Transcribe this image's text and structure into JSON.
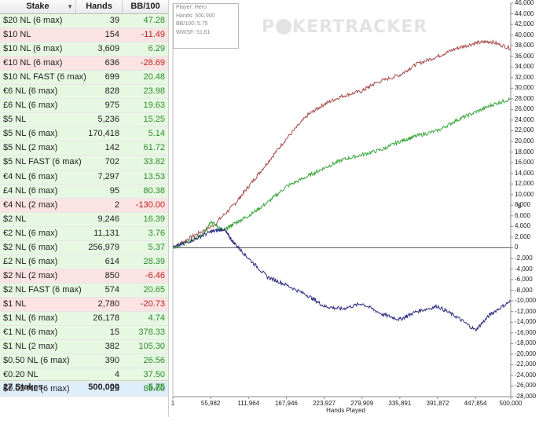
{
  "table": {
    "columns": {
      "stake": "Stake",
      "hands": "Hands",
      "bb100": "BB/100"
    },
    "rows": [
      {
        "stake": "$20 NL (6 max)",
        "hands": "39",
        "bb100": "47.28",
        "bg": "g"
      },
      {
        "stake": "$10 NL",
        "hands": "154",
        "bb100": "-11.49",
        "bg": "r"
      },
      {
        "stake": "$10 NL (6 max)",
        "hands": "3,609",
        "bb100": "6.29",
        "bg": "g"
      },
      {
        "stake": "€10 NL (6 max)",
        "hands": "636",
        "bb100": "-28.69",
        "bg": "r"
      },
      {
        "stake": "$10 NL FAST (6 max)",
        "hands": "699",
        "bb100": "20.48",
        "bg": "g"
      },
      {
        "stake": "€6 NL (6 max)",
        "hands": "828",
        "bb100": "23.98",
        "bg": "g"
      },
      {
        "stake": "£6 NL (6 max)",
        "hands": "975",
        "bb100": "19.63",
        "bg": "g"
      },
      {
        "stake": "$5 NL",
        "hands": "5,236",
        "bb100": "15.25",
        "bg": "g"
      },
      {
        "stake": "$5 NL (6 max)",
        "hands": "170,418",
        "bb100": "5.14",
        "bg": "g"
      },
      {
        "stake": "$5 NL (2 max)",
        "hands": "142",
        "bb100": "61.72",
        "bg": "g"
      },
      {
        "stake": "$5 NL FAST (6 max)",
        "hands": "702",
        "bb100": "33.82",
        "bg": "g"
      },
      {
        "stake": "€4 NL (6 max)",
        "hands": "7,297",
        "bb100": "13.53",
        "bg": "g"
      },
      {
        "stake": "£4 NL (6 max)",
        "hands": "95",
        "bb100": "80.38",
        "bg": "g"
      },
      {
        "stake": "€4 NL (2 max)",
        "hands": "2",
        "bb100": "-130.00",
        "bg": "r"
      },
      {
        "stake": "$2 NL",
        "hands": "9,246",
        "bb100": "16.39",
        "bg": "g"
      },
      {
        "stake": "€2 NL (6 max)",
        "hands": "11,131",
        "bb100": "3.76",
        "bg": "g"
      },
      {
        "stake": "$2 NL (6 max)",
        "hands": "256,979",
        "bb100": "5.37",
        "bg": "g"
      },
      {
        "stake": "£2 NL (6 max)",
        "hands": "614",
        "bb100": "28.39",
        "bg": "g"
      },
      {
        "stake": "$2 NL (2 max)",
        "hands": "850",
        "bb100": "-6.46",
        "bg": "r"
      },
      {
        "stake": "$2 NL FAST (6 max)",
        "hands": "574",
        "bb100": "20.65",
        "bg": "g"
      },
      {
        "stake": "$1 NL",
        "hands": "2,780",
        "bb100": "-20.73",
        "bg": "r"
      },
      {
        "stake": "$1 NL (6 max)",
        "hands": "26,178",
        "bb100": "4.74",
        "bg": "g"
      },
      {
        "stake": "€1 NL (6 max)",
        "hands": "15",
        "bb100": "378.33",
        "bg": "g"
      },
      {
        "stake": "$1 NL (2 max)",
        "hands": "382",
        "bb100": "105.30",
        "bg": "g"
      },
      {
        "stake": "$0.50 NL (6 max)",
        "hands": "390",
        "bb100": "26.56",
        "bg": "g"
      },
      {
        "stake": "€0.20 NL",
        "hands": "4",
        "bb100": "37.50",
        "bg": "g"
      },
      {
        "stake": "$0.02 NL (6 max)",
        "hands": "25",
        "bb100": "86.00",
        "bg": "b"
      }
    ],
    "total": {
      "stake": "27 Stakes",
      "hands": "500,000",
      "bb100": "5.75"
    }
  },
  "chart": {
    "legend": {
      "player": "Player: Hero",
      "hands": "Hands: 500,000",
      "bb100": "BB/100: 5.75",
      "wwsf": "WWSF: 51.61"
    },
    "watermark": {
      "left": "P",
      "right": "KERTRACKER"
    },
    "icon": "poker-chip-icon",
    "colors": {
      "red_line": "#a84a4a",
      "green_line": "#3aa63a",
      "blue_line": "#2c2c80",
      "zero_line": "#555555"
    }
  },
  "chart_data": {
    "type": "line",
    "xlabel": "Hands Played",
    "ylabel": "$",
    "xlim": [
      1,
      500000
    ],
    "ylim": [
      -28000,
      46000
    ],
    "x_ticks": [
      1,
      55982,
      111964,
      167946,
      223927,
      279909,
      335891,
      391872,
      447854,
      500000
    ],
    "x_tick_labels": [
      "1",
      "55,982",
      "111,964",
      "167,946",
      "223,927",
      "279,909",
      "335,891",
      "391,872",
      "447,854",
      "500,000"
    ],
    "y_ticks": [
      46000,
      44000,
      42000,
      40000,
      38000,
      36000,
      34000,
      32000,
      30000,
      28000,
      26000,
      24000,
      22000,
      20000,
      18000,
      16000,
      14000,
      12000,
      10000,
      8000,
      6000,
      4000,
      2000,
      0,
      -2000,
      -4000,
      -6000,
      -8000,
      -10000,
      -12000,
      -14000,
      -16000,
      -18000,
      -20000,
      -22000,
      -24000,
      -26000,
      -28000
    ],
    "y_tick_labels": [
      "46,000",
      "44,000",
      "42,000",
      "40,000",
      "38,000",
      "36,000",
      "34,000",
      "32,000",
      "30,000",
      "28,000",
      "26,000",
      "24,000",
      "22,000",
      "20,000",
      "18,000",
      "16,000",
      "14,000",
      "12,000",
      "10,000",
      "8,000",
      "6,000",
      "4,000",
      "2,000",
      "0",
      "-2,000",
      "-4,000",
      "-6,000",
      "-8,000",
      "-10,000",
      "-12,000",
      "-14,000",
      "-16,000",
      "-18,000",
      "-20,000",
      "-22,000",
      "-24,000",
      "-26,000",
      "-28,000"
    ],
    "series": [
      {
        "color": "#a84a4a",
        "x": [
          1,
          30000,
          60000,
          90000,
          111964,
          140000,
          167946,
          200000,
          223927,
          250000,
          279909,
          300000,
          335891,
          360000,
          391872,
          420000,
          447854,
          470000,
          500000
        ],
        "y": [
          0,
          2200,
          4200,
          8000,
          11500,
          16000,
          20500,
          25000,
          27000,
          28500,
          29500,
          31000,
          32500,
          34500,
          36000,
          37500,
          38500,
          38800,
          37500
        ]
      },
      {
        "color": "#3aa63a",
        "x": [
          1,
          25000,
          45000,
          55982,
          75000,
          90000,
          111964,
          140000,
          167946,
          200000,
          223927,
          250000,
          279909,
          310000,
          335891,
          360000,
          391872,
          420000,
          447854,
          475000,
          500000
        ],
        "y": [
          0,
          1200,
          2500,
          5000,
          3200,
          4500,
          6000,
          8500,
          11500,
          13500,
          15000,
          16500,
          17500,
          18500,
          20000,
          21000,
          22000,
          24000,
          25500,
          27000,
          28000
        ]
      },
      {
        "color": "#2c2c80",
        "x": [
          1,
          30000,
          55982,
          75000,
          90000,
          111964,
          140000,
          167946,
          200000,
          223927,
          250000,
          279909,
          310000,
          335891,
          360000,
          391872,
          420000,
          447854,
          470000,
          500000
        ],
        "y": [
          0,
          1500,
          3000,
          3500,
          1000,
          -2000,
          -5500,
          -7000,
          -9000,
          -11000,
          -11500,
          -10500,
          -12500,
          -13500,
          -12000,
          -11000,
          -13000,
          -15500,
          -12500,
          -10000
        ]
      }
    ]
  }
}
